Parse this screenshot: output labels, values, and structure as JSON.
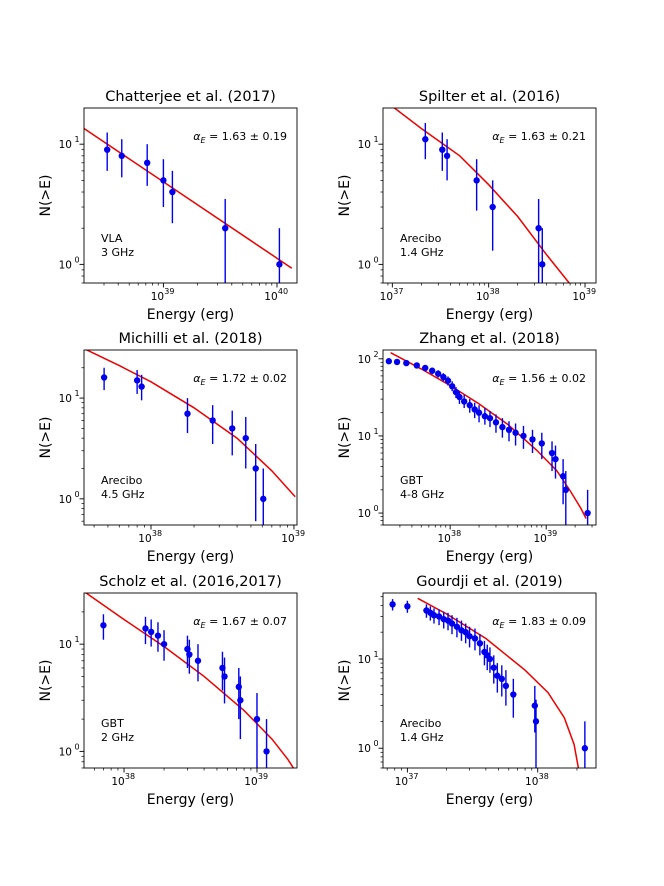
{
  "figure": {
    "colors": {
      "data": "#0000ee",
      "fit": "#ee0000",
      "axis": "#000000"
    },
    "shared": {
      "xlabel": "Energy (erg)",
      "ylabel": "N(>E)"
    }
  },
  "chart_data": [
    {
      "type": "scatter",
      "title": "Chatterjee et al. (2017)",
      "xlabel": "Energy (erg)",
      "ylabel": "N(>E)",
      "xscale": "log",
      "yscale": "log",
      "xlim": [
        2e+38,
        1.5e+40
      ],
      "ylim": [
        0.7,
        20
      ],
      "xticks": [
        {
          "v": 1e+39,
          "m": "39"
        },
        {
          "v": 1e+40,
          "m": "40"
        }
      ],
      "yticks": [
        {
          "v": 1,
          "t": "10",
          "s": "0"
        },
        {
          "v": 10,
          "t": "10",
          "s": "1"
        }
      ],
      "alpha_prefix": "α",
      "alpha_sub": "E",
      "alpha_text": " = 1.63 ± 0.19",
      "alpha_pos": "top-right",
      "instrument": "VLA",
      "frequency": "3 GHz",
      "points": [
        {
          "x": 3.2e+38,
          "y": 9,
          "lo": 6,
          "hi": 12.5
        },
        {
          "x": 4.3e+38,
          "y": 8,
          "lo": 5.3,
          "hi": 11
        },
        {
          "x": 7.2e+38,
          "y": 7,
          "lo": 4.5,
          "hi": 10
        },
        {
          "x": 1e+39,
          "y": 5,
          "lo": 3,
          "hi": 7.5
        },
        {
          "x": 1.2e+39,
          "y": 4,
          "lo": 2.2,
          "hi": 6
        },
        {
          "x": 3.5e+39,
          "y": 2,
          "lo": 0.3,
          "hi": 3.5
        },
        {
          "x": 1.05e+40,
          "y": 1,
          "lo": 0.3,
          "hi": 2
        }
      ],
      "fit": [
        [
          2e+38,
          13.5
        ],
        [
          1.35e+40,
          0.93
        ]
      ]
    },
    {
      "type": "scatter",
      "title": "Spilter et al. (2016)",
      "xlabel": "Energy (erg)",
      "ylabel": "N(>E)",
      "xscale": "log",
      "yscale": "log",
      "xlim": [
        8e+36,
        1.3e+39
      ],
      "ylim": [
        0.7,
        20
      ],
      "xticks": [
        {
          "v": 1e+37,
          "m": "37"
        },
        {
          "v": 1e+38,
          "m": "38"
        },
        {
          "v": 1e+39,
          "m": "39"
        }
      ],
      "yticks": [
        {
          "v": 1,
          "t": "10",
          "s": "0"
        },
        {
          "v": 10,
          "t": "10",
          "s": "1"
        }
      ],
      "alpha_prefix": "α",
      "alpha_sub": "E",
      "alpha_text": " = 1.63 ± 0.21",
      "alpha_pos": "top-right",
      "instrument": "Arecibo",
      "frequency": "1.4 GHz",
      "points": [
        {
          "x": 2.2e+37,
          "y": 11,
          "lo": 7.5,
          "hi": 15
        },
        {
          "x": 3.3e+37,
          "y": 9,
          "lo": 6,
          "hi": 12.5
        },
        {
          "x": 3.7e+37,
          "y": 8,
          "lo": 5,
          "hi": 11
        },
        {
          "x": 7.5e+37,
          "y": 5,
          "lo": 2.8,
          "hi": 7.5
        },
        {
          "x": 1.1e+38,
          "y": 3,
          "lo": 1.3,
          "hi": 5
        },
        {
          "x": 3.3e+38,
          "y": 2,
          "lo": 0.3,
          "hi": 3.5
        },
        {
          "x": 3.6e+38,
          "y": 1,
          "lo": 0.3,
          "hi": 2
        }
      ],
      "fit": [
        [
          9e+36,
          22
        ],
        [
          2e+37,
          13.5
        ],
        [
          5e+37,
          8
        ],
        [
          1e+38,
          4.6
        ],
        [
          2e+38,
          2.5
        ],
        [
          4e+38,
          1.2
        ],
        [
          6e+38,
          0.8
        ],
        [
          8e+38,
          0.6
        ]
      ]
    },
    {
      "type": "scatter",
      "title": "Michilli et al. (2018)",
      "xlabel": "Energy (erg)",
      "ylabel": "N(>E)",
      "xscale": "log",
      "yscale": "log",
      "xlim": [
        3.4e+37,
        1.05e+39
      ],
      "ylim": [
        0.55,
        30
      ],
      "xticks": [
        {
          "v": 1e+38,
          "m": "38"
        },
        {
          "v": 1e+39,
          "m": "39"
        }
      ],
      "yticks": [
        {
          "v": 1,
          "t": "10",
          "s": "0"
        },
        {
          "v": 10,
          "t": "10",
          "s": "1"
        }
      ],
      "alpha_prefix": "α",
      "alpha_sub": "E",
      "alpha_text": " = 1.72 ± 0.02",
      "alpha_pos": "top-right",
      "instrument": "Arecibo",
      "frequency": "4.5 GHz",
      "points": [
        {
          "x": 4.7e+37,
          "y": 16,
          "lo": 12,
          "hi": 20
        },
        {
          "x": 8e+37,
          "y": 15,
          "lo": 11,
          "hi": 19
        },
        {
          "x": 8.6e+37,
          "y": 13,
          "lo": 9.5,
          "hi": 17
        },
        {
          "x": 1.8e+38,
          "y": 7,
          "lo": 4.5,
          "hi": 10
        },
        {
          "x": 2.7e+38,
          "y": 6,
          "lo": 3.5,
          "hi": 8.5
        },
        {
          "x": 3.7e+38,
          "y": 5,
          "lo": 2.7,
          "hi": 7.5
        },
        {
          "x": 4.6e+38,
          "y": 4,
          "lo": 2,
          "hi": 6.5
        },
        {
          "x": 5.4e+38,
          "y": 2,
          "lo": 0.6,
          "hi": 3.5
        },
        {
          "x": 6.1e+38,
          "y": 1,
          "lo": 0.55,
          "hi": 2
        }
      ],
      "fit": [
        [
          3.4e+37,
          31
        ],
        [
          6e+37,
          21
        ],
        [
          1e+38,
          14.5
        ],
        [
          2e+38,
          8
        ],
        [
          4e+38,
          4
        ],
        [
          7e+38,
          1.9
        ],
        [
          1.02e+39,
          1.05
        ]
      ]
    },
    {
      "type": "scatter",
      "title": "Zhang et al. (2018)",
      "xlabel": "Energy (erg)",
      "ylabel": "N(>E)",
      "xscale": "log",
      "yscale": "log",
      "xlim": [
        2e+37,
        3.3e+39
      ],
      "ylim": [
        0.7,
        130
      ],
      "xticks": [
        {
          "v": 1e+38,
          "m": "38"
        },
        {
          "v": 1e+39,
          "m": "39"
        }
      ],
      "yticks": [
        {
          "v": 1,
          "t": "10",
          "s": "0"
        },
        {
          "v": 10,
          "t": "10",
          "s": "1"
        },
        {
          "v": 100,
          "t": "10",
          "s": "2"
        }
      ],
      "alpha_prefix": "α",
      "alpha_sub": "E",
      "alpha_text": " = 1.56 ± 0.02",
      "alpha_pos": "top-right",
      "instrument": "GBT",
      "frequency": "4-8 GHz",
      "points": [
        {
          "x": 2.3e+37,
          "y": 93,
          "lo": 86,
          "hi": 100
        },
        {
          "x": 2.8e+37,
          "y": 91,
          "lo": 84,
          "hi": 98
        },
        {
          "x": 3.5e+37,
          "y": 88,
          "lo": 81,
          "hi": 95
        },
        {
          "x": 4.5e+37,
          "y": 82,
          "lo": 75,
          "hi": 89
        },
        {
          "x": 5.5e+37,
          "y": 76,
          "lo": 69,
          "hi": 83
        },
        {
          "x": 6.5e+37,
          "y": 70,
          "lo": 63,
          "hi": 77
        },
        {
          "x": 7.5e+37,
          "y": 64,
          "lo": 57,
          "hi": 71
        },
        {
          "x": 8.5e+37,
          "y": 58,
          "lo": 51,
          "hi": 65
        },
        {
          "x": 9.5e+37,
          "y": 52,
          "lo": 45,
          "hi": 59
        },
        {
          "x": 1.05e+38,
          "y": 44,
          "lo": 38,
          "hi": 51
        },
        {
          "x": 1.15e+38,
          "y": 37,
          "lo": 31,
          "hi": 43
        },
        {
          "x": 1.25e+38,
          "y": 32,
          "lo": 26,
          "hi": 38
        },
        {
          "x": 1.4e+38,
          "y": 28,
          "lo": 23,
          "hi": 34
        },
        {
          "x": 1.6e+38,
          "y": 25,
          "lo": 20,
          "hi": 30
        },
        {
          "x": 1.8e+38,
          "y": 22,
          "lo": 17,
          "hi": 27
        },
        {
          "x": 2e+38,
          "y": 20,
          "lo": 15,
          "hi": 25
        },
        {
          "x": 2.3e+38,
          "y": 18,
          "lo": 14,
          "hi": 23
        },
        {
          "x": 2.6e+38,
          "y": 17,
          "lo": 13,
          "hi": 21
        },
        {
          "x": 3e+38,
          "y": 15,
          "lo": 11,
          "hi": 19
        },
        {
          "x": 3.5e+38,
          "y": 13,
          "lo": 9.5,
          "hi": 17
        },
        {
          "x": 4.1e+38,
          "y": 12,
          "lo": 8.5,
          "hi": 15.5
        },
        {
          "x": 4.8e+38,
          "y": 11,
          "lo": 7.5,
          "hi": 14.5
        },
        {
          "x": 5.8e+38,
          "y": 10,
          "lo": 6.8,
          "hi": 13.5
        },
        {
          "x": 7.2e+38,
          "y": 9,
          "lo": 6,
          "hi": 12
        },
        {
          "x": 9e+38,
          "y": 8,
          "lo": 5,
          "hi": 11
        },
        {
          "x": 1.15e+39,
          "y": 6,
          "lo": 3.5,
          "hi": 8.5
        },
        {
          "x": 1.25e+39,
          "y": 5,
          "lo": 2.8,
          "hi": 7.5
        },
        {
          "x": 1.5e+39,
          "y": 3,
          "lo": 1.3,
          "hi": 5
        },
        {
          "x": 1.6e+39,
          "y": 2,
          "lo": 0.7,
          "hi": 3.5
        },
        {
          "x": 2.7e+39,
          "y": 1,
          "lo": 0.7,
          "hi": 2
        }
      ],
      "fit": [
        [
          2.4e+37,
          120
        ],
        [
          5e+37,
          74
        ],
        [
          1e+38,
          45
        ],
        [
          2e+38,
          26
        ],
        [
          4e+38,
          14
        ],
        [
          8e+38,
          6.5
        ],
        [
          1.3e+39,
          3.5
        ],
        [
          1.8e+39,
          1.9
        ],
        [
          2.3e+39,
          1.15
        ],
        [
          2.6e+39,
          0.85
        ]
      ]
    },
    {
      "type": "scatter",
      "title": "Scholz et al. (2016,2017)",
      "xlabel": "Energy (erg)",
      "ylabel": "N(>E)",
      "xscale": "log",
      "yscale": "log",
      "xlim": [
        5e+37,
        2e+39
      ],
      "ylim": [
        0.7,
        30
      ],
      "xticks": [
        {
          "v": 1e+38,
          "m": "38"
        },
        {
          "v": 1e+39,
          "m": "39"
        }
      ],
      "yticks": [
        {
          "v": 1,
          "t": "10",
          "s": "0"
        },
        {
          "v": 10,
          "t": "10",
          "s": "1"
        }
      ],
      "alpha_prefix": "α",
      "alpha_sub": "E",
      "alpha_text": " = 1.67 ± 0.07",
      "alpha_pos": "top-right",
      "instrument": "GBT",
      "frequency": "2 GHz",
      "points": [
        {
          "x": 7e+37,
          "y": 15,
          "lo": 11,
          "hi": 19
        },
        {
          "x": 1.45e+38,
          "y": 14,
          "lo": 10,
          "hi": 18
        },
        {
          "x": 1.6e+38,
          "y": 13,
          "lo": 9.5,
          "hi": 17
        },
        {
          "x": 1.8e+38,
          "y": 12,
          "lo": 8.5,
          "hi": 16
        },
        {
          "x": 2e+38,
          "y": 10,
          "lo": 7,
          "hi": 13.5
        },
        {
          "x": 3e+38,
          "y": 9,
          "lo": 6,
          "hi": 12
        },
        {
          "x": 3.1e+38,
          "y": 8,
          "lo": 5.3,
          "hi": 11
        },
        {
          "x": 3.6e+38,
          "y": 7,
          "lo": 4.5,
          "hi": 10
        },
        {
          "x": 5.5e+38,
          "y": 6,
          "lo": 3.7,
          "hi": 8.5
        },
        {
          "x": 5.7e+38,
          "y": 5,
          "lo": 2.8,
          "hi": 7.5
        },
        {
          "x": 7.3e+38,
          "y": 4,
          "lo": 2,
          "hi": 6
        },
        {
          "x": 7.5e+38,
          "y": 3,
          "lo": 1.3,
          "hi": 5
        },
        {
          "x": 1e+39,
          "y": 2,
          "lo": 0.7,
          "hi": 3.5
        },
        {
          "x": 1.18e+39,
          "y": 1,
          "lo": 0.7,
          "hi": 2
        }
      ],
      "fit": [
        [
          5e+37,
          31
        ],
        [
          1e+38,
          17
        ],
        [
          2e+38,
          9.5
        ],
        [
          4e+38,
          5
        ],
        [
          8e+38,
          2.4
        ],
        [
          1.3e+39,
          1.3
        ],
        [
          1.7e+39,
          0.85
        ],
        [
          2e+39,
          0.62
        ]
      ]
    },
    {
      "type": "scatter",
      "title": "Gourdji et al. (2019)",
      "xlabel": "Energy (erg)",
      "ylabel": "N(>E)",
      "xscale": "log",
      "yscale": "log",
      "xlim": [
        6.5e+36,
        2.8e+38
      ],
      "ylim": [
        0.6,
        55
      ],
      "xticks": [
        {
          "v": 1e+37,
          "m": "37"
        },
        {
          "v": 1e+38,
          "m": "38"
        }
      ],
      "yticks": [
        {
          "v": 1,
          "t": "10",
          "s": "0"
        },
        {
          "v": 10,
          "t": "10",
          "s": "1"
        }
      ],
      "alpha_prefix": "α",
      "alpha_sub": "E",
      "alpha_text": " = 1.83 ± 0.09",
      "alpha_pos": "top-right",
      "instrument": "Arecibo",
      "frequency": "1.4 GHz",
      "points": [
        {
          "x": 7.7e+36,
          "y": 41,
          "lo": 35,
          "hi": 47
        },
        {
          "x": 1e+37,
          "y": 39,
          "lo": 33,
          "hi": 45
        },
        {
          "x": 1.4e+37,
          "y": 35,
          "lo": 29,
          "hi": 41
        },
        {
          "x": 1.5e+37,
          "y": 33,
          "lo": 27,
          "hi": 39
        },
        {
          "x": 1.6e+37,
          "y": 31,
          "lo": 25,
          "hi": 37
        },
        {
          "x": 1.75e+37,
          "y": 30,
          "lo": 24,
          "hi": 36
        },
        {
          "x": 1.9e+37,
          "y": 28,
          "lo": 22,
          "hi": 34
        },
        {
          "x": 2.05e+37,
          "y": 27,
          "lo": 21,
          "hi": 33
        },
        {
          "x": 2.2e+37,
          "y": 25,
          "lo": 19,
          "hi": 31
        },
        {
          "x": 2.4e+37,
          "y": 23,
          "lo": 17.5,
          "hi": 29
        },
        {
          "x": 2.6e+37,
          "y": 21,
          "lo": 16,
          "hi": 27
        },
        {
          "x": 2.8e+37,
          "y": 20,
          "lo": 15,
          "hi": 25
        },
        {
          "x": 3e+37,
          "y": 18,
          "lo": 13.5,
          "hi": 23
        },
        {
          "x": 3.3e+37,
          "y": 17,
          "lo": 12.5,
          "hi": 22
        },
        {
          "x": 3.6e+37,
          "y": 15,
          "lo": 11,
          "hi": 19
        },
        {
          "x": 3.9e+37,
          "y": 12,
          "lo": 8.5,
          "hi": 16
        },
        {
          "x": 4.1e+37,
          "y": 11,
          "lo": 7.5,
          "hi": 14.5
        },
        {
          "x": 4.3e+37,
          "y": 10,
          "lo": 7,
          "hi": 13.5
        },
        {
          "x": 4.6e+37,
          "y": 8,
          "lo": 5.3,
          "hi": 11
        },
        {
          "x": 4.9e+37,
          "y": 6.5,
          "lo": 4.2,
          "hi": 9
        },
        {
          "x": 5.3e+37,
          "y": 6,
          "lo": 3.8,
          "hi": 8.5
        },
        {
          "x": 5.7e+37,
          "y": 5,
          "lo": 3,
          "hi": 7.5
        },
        {
          "x": 6.5e+37,
          "y": 4,
          "lo": 2.2,
          "hi": 6
        },
        {
          "x": 9.5e+37,
          "y": 3,
          "lo": 1.5,
          "hi": 5
        },
        {
          "x": 9.7e+37,
          "y": 2,
          "lo": 0.6,
          "hi": 3.5
        },
        {
          "x": 2.3e+38,
          "y": 1,
          "lo": 0.6,
          "hi": 2
        }
      ],
      "fit": [
        [
          1.2e+37,
          48
        ],
        [
          2e+37,
          32
        ],
        [
          4e+37,
          17
        ],
        [
          8e+37,
          7.5
        ],
        [
          1.2e+38,
          4.2
        ],
        [
          1.6e+38,
          2.2
        ],
        [
          1.9e+38,
          1.1
        ],
        [
          2.05e+38,
          0.6
        ]
      ]
    }
  ]
}
